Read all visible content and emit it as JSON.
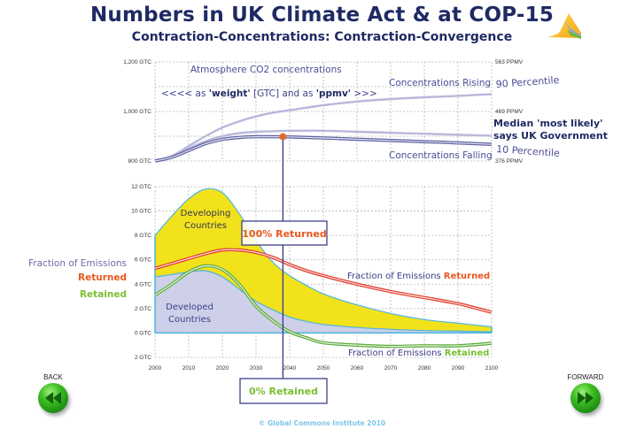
{
  "header": {
    "title": "Numbers in UK Climate Act & at COP-15",
    "subtitle": "Contraction-Concentrations: Contraction-Convergence"
  },
  "logo": {
    "icon": "gci-mountain-logo-icon"
  },
  "navigation": {
    "back_label": "BACK",
    "forward_label": "FORWARD",
    "back_icon": "rewind-icon",
    "forward_icon": "fast-forward-icon"
  },
  "footer": {
    "copyright": "© Global Commons Institute 2010"
  },
  "colors": {
    "title": "#1f2a63",
    "developing_fill": "#f2e21c",
    "developed_fill": "#cdd0e8",
    "area_edge": "#4bb4e0",
    "returned": "#e03a2a",
    "retained": "#5aaa3a",
    "conc_light": "#b9b7dc",
    "conc_dark": "#5c5fa0",
    "marker": "#e06a2a",
    "returned_text": "#e8581e",
    "retained_text": "#7ac030"
  },
  "chart_data": [
    {
      "type": "line",
      "title": "Atmosphere CO2 concentrations",
      "annotation": "<<<< as 'weight' [GTC] and as 'ppmv' >>>",
      "annotation_parts": [
        "<<<< as ",
        "'weight'",
        " [GTC] and as ",
        "'ppmv'",
        " >>>"
      ],
      "x": [
        2000,
        2005,
        2010,
        2015,
        2020,
        2025,
        2030,
        2035,
        2040,
        2050,
        2060,
        2070,
        2080,
        2090,
        2100
      ],
      "yunit": "GTC",
      "ylim": [
        800,
        1200
      ],
      "yticks_left": [
        "1,200 GTC",
        "1,000 GTC",
        "800 GTC"
      ],
      "yticks_left_values": [
        1200,
        1000,
        800
      ],
      "yticks_right": [
        "563 PPMV",
        "469 PPMV",
        "376 PPMV"
      ],
      "series": [
        {
          "name": "90 Percentile",
          "label": "Concentrations Rising",
          "values": [
            800,
            820,
            860,
            900,
            935,
            960,
            980,
            995,
            1005,
            1025,
            1040,
            1050,
            1057,
            1063,
            1070
          ]
        },
        {
          "name": "Median 'most likely'",
          "label_line1": "Median 'most likely'",
          "label_line2": "says UK Government",
          "values": [
            800,
            818,
            850,
            880,
            900,
            912,
            918,
            920,
            922,
            922,
            918,
            914,
            910,
            906,
            902
          ]
        },
        {
          "name": "10 Percentile",
          "label": "Concentrations Falling",
          "values": [
            800,
            815,
            842,
            870,
            887,
            895,
            898,
            898,
            897,
            893,
            888,
            883,
            878,
            873,
            867
          ]
        }
      ],
      "marker": {
        "x": 2038,
        "y": 898
      },
      "grid": true
    },
    {
      "type": "area",
      "x": [
        2000,
        2005,
        2010,
        2015,
        2020,
        2025,
        2030,
        2035,
        2040,
        2045,
        2050,
        2060,
        2070,
        2080,
        2090,
        2100
      ],
      "yunit": "GTC",
      "ylim": [
        -2,
        12
      ],
      "yticks": [
        "12 GTC",
        "10 GTC",
        "8 GTC",
        "6 GTC",
        "4 GTC",
        "2 GTC",
        "0 GTC",
        "2 GTC"
      ],
      "ytick_values": [
        12,
        10,
        8,
        6,
        4,
        2,
        0,
        -2
      ],
      "xticks": [
        "2000",
        "2010",
        "2020",
        "2030",
        "2040",
        "2050",
        "2060",
        "2070",
        "2080",
        "2090",
        "2100"
      ],
      "xtick_values": [
        2000,
        2010,
        2020,
        2030,
        2040,
        2050,
        2060,
        2070,
        2080,
        2090,
        2100
      ],
      "series": [
        {
          "name": "Developing Countries",
          "kind": "area-top",
          "label_line1": "Developing",
          "label_line2": "Countries",
          "values": [
            8.0,
            9.6,
            11.0,
            11.8,
            11.5,
            9.8,
            7.6,
            5.8,
            4.7,
            3.9,
            3.2,
            2.3,
            1.6,
            1.1,
            0.8,
            0.5
          ]
        },
        {
          "name": "Developed Countries",
          "kind": "area",
          "label_line1": "Developed",
          "label_line2": "Countries",
          "values": [
            4.6,
            4.8,
            5.0,
            5.1,
            4.6,
            3.6,
            2.6,
            1.9,
            1.3,
            0.95,
            0.7,
            0.45,
            0.3,
            0.2,
            0.15,
            0.1
          ]
        },
        {
          "name": "Fraction of Emissions Returned",
          "kind": "line",
          "values": [
            5.3,
            5.7,
            6.1,
            6.5,
            6.8,
            6.8,
            6.6,
            6.2,
            5.6,
            5.1,
            4.7,
            4.0,
            3.4,
            2.9,
            2.4,
            1.7
          ]
        },
        {
          "name": "Fraction of Emissions Retained",
          "kind": "line",
          "values": [
            3.1,
            4.0,
            5.0,
            5.5,
            5.2,
            4.0,
            2.2,
            1.0,
            0.1,
            -0.4,
            -0.8,
            -1.0,
            -1.1,
            -1.05,
            -1.05,
            -0.85
          ]
        }
      ],
      "marker_x": 2038,
      "labels": {
        "returned_prefix": "Fraction of Emissions ",
        "returned_word": "Returned",
        "retained_prefix": "Fraction of Emissions ",
        "retained_word": "Retained",
        "left_legend_title": "Fraction of Emissions",
        "left_legend_returned": "Returned",
        "left_legend_retained": "Retained",
        "box_returned": "100% Returned",
        "box_retained": "0% Retained"
      },
      "grid": true
    }
  ]
}
